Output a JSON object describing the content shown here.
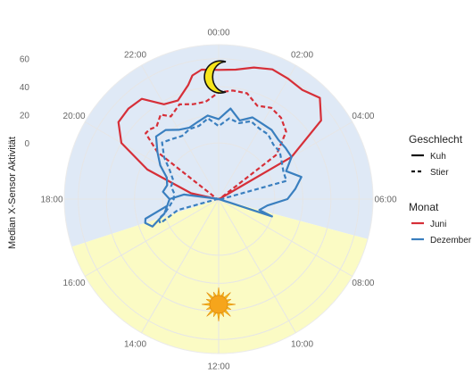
{
  "chart_data": {
    "type": "line",
    "coordinate_system": "polar",
    "ylabel": "Median X-Sensor Aktivität",
    "y_ticks": [
      0,
      20,
      40,
      60
    ],
    "ylim": [
      -40,
      70
    ],
    "hour_ticks": [
      "00:00",
      "02:00",
      "04:00",
      "06:00",
      "08:00",
      "10:00",
      "12:00",
      "14:00",
      "16:00",
      "18:00",
      "20:00",
      "22:00"
    ],
    "night_band": {
      "from_hour": 16.8,
      "to_hour": 7.0,
      "color": "#dfe9f6"
    },
    "day_band": {
      "from_hour": 7.0,
      "to_hour": 16.8,
      "color": "#fbfbc4"
    },
    "grid": true,
    "legend_position": "right",
    "legends": [
      {
        "title": "Geschlecht",
        "entries": [
          {
            "label": "Kuh",
            "linetype": "solid"
          },
          {
            "label": "Stier",
            "linetype": "dashed"
          }
        ]
      },
      {
        "title": "Monat",
        "entries": [
          {
            "label": "Juni",
            "color": "#d62f38"
          },
          {
            "label": "Dezember",
            "color": "#3a7fbf"
          }
        ]
      }
    ],
    "series": [
      {
        "sex": "Kuh",
        "month": "Juni",
        "color": "#d62f38",
        "linetype": "solid",
        "points": [
          [
            4.5,
            -39
          ],
          [
            6.0,
            -39
          ],
          [
            18.0,
            -39
          ],
          [
            18.8,
            -20
          ],
          [
            19.5,
            15
          ],
          [
            20.0,
            40
          ],
          [
            20.5,
            50
          ],
          [
            21.0,
            51
          ],
          [
            21.5,
            50
          ],
          [
            22.0,
            38
          ],
          [
            22.5,
            36
          ],
          [
            23.0,
            44
          ],
          [
            23.2,
            50
          ],
          [
            23.5,
            53
          ],
          [
            0.0,
            52
          ],
          [
            0.5,
            53
          ],
          [
            1.0,
            57
          ],
          [
            1.5,
            60
          ],
          [
            2.0,
            59
          ],
          [
            2.5,
            58
          ],
          [
            3.0,
            62
          ],
          [
            3.5,
            52
          ],
          [
            4.0,
            20
          ],
          [
            4.5,
            -39
          ]
        ]
      },
      {
        "sex": "Stier",
        "month": "Juni",
        "color": "#d62f38",
        "linetype": "dashed",
        "points": [
          [
            4.5,
            -39
          ],
          [
            18.0,
            -39
          ],
          [
            20.5,
            15
          ],
          [
            20.8,
            30
          ],
          [
            21.0,
            30
          ],
          [
            21.3,
            28
          ],
          [
            21.7,
            33
          ],
          [
            22.0,
            28
          ],
          [
            22.5,
            33
          ],
          [
            23.0,
            30
          ],
          [
            23.5,
            30
          ],
          [
            0.0,
            36
          ],
          [
            0.5,
            38
          ],
          [
            1.0,
            38
          ],
          [
            1.5,
            32
          ],
          [
            2.0,
            35
          ],
          [
            2.5,
            33
          ],
          [
            3.0,
            28
          ],
          [
            3.5,
            12
          ],
          [
            4.5,
            -39
          ]
        ]
      },
      {
        "sex": "Kuh",
        "month": "Dezember",
        "color": "#3a7fbf",
        "linetype": "solid",
        "points": [
          [
            7.0,
            -39
          ],
          [
            7.2,
            0
          ],
          [
            7.0,
            -10
          ],
          [
            6.5,
            -5
          ],
          [
            6.0,
            9
          ],
          [
            5.5,
            15
          ],
          [
            5.0,
            21
          ],
          [
            4.5,
            12
          ],
          [
            4.0,
            20
          ],
          [
            3.5,
            20
          ],
          [
            3.0,
            20
          ],
          [
            2.5,
            22
          ],
          [
            2.0,
            22
          ],
          [
            1.5,
            23
          ],
          [
            1.0,
            18
          ],
          [
            0.5,
            25
          ],
          [
            0.0,
            17
          ],
          [
            23.5,
            20
          ],
          [
            23.0,
            17
          ],
          [
            22.5,
            15
          ],
          [
            22.0,
            17
          ],
          [
            21.5,
            22
          ],
          [
            21.0,
            23
          ],
          [
            20.5,
            15
          ],
          [
            20.0,
            8
          ],
          [
            19.5,
            0
          ],
          [
            19.0,
            -2
          ],
          [
            18.5,
            0
          ],
          [
            18.0,
            -5
          ],
          [
            17.5,
            -3
          ],
          [
            17.0,
            0
          ],
          [
            16.5,
            11
          ],
          [
            16.8,
            15
          ],
          [
            17.0,
            14
          ],
          [
            17.5,
            -3
          ],
          [
            18.0,
            -5
          ],
          [
            18.5,
            -15
          ],
          [
            19.0,
            -39
          ],
          [
            7.0,
            -39
          ]
        ]
      },
      {
        "sex": "Stier",
        "month": "Dezember",
        "color": "#3a7fbf",
        "linetype": "dashed",
        "points": [
          [
            7.0,
            -39
          ],
          [
            5.0,
            10
          ],
          [
            4.5,
            10
          ],
          [
            4.0,
            12
          ],
          [
            3.5,
            15
          ],
          [
            3.0,
            15
          ],
          [
            2.5,
            18
          ],
          [
            2.0,
            18
          ],
          [
            1.5,
            20
          ],
          [
            1.0,
            16
          ],
          [
            0.5,
            18
          ],
          [
            0.0,
            12
          ],
          [
            23.5,
            18
          ],
          [
            23.0,
            14
          ],
          [
            22.5,
            14
          ],
          [
            22.0,
            12
          ],
          [
            21.5,
            14
          ],
          [
            21.0,
            17
          ],
          [
            20.5,
            9
          ],
          [
            20.0,
            0
          ],
          [
            19.5,
            -5
          ],
          [
            19.0,
            -5
          ],
          [
            18.5,
            -8
          ],
          [
            18.0,
            -8
          ],
          [
            17.5,
            -5
          ],
          [
            17.0,
            0
          ],
          [
            16.8,
            5
          ],
          [
            16.5,
            5
          ],
          [
            17.0,
            -10
          ],
          [
            18.0,
            -39
          ],
          [
            7.0,
            -39
          ]
        ]
      }
    ],
    "annotations": [
      {
        "type": "moon-icon",
        "hour": 0.0,
        "value": 47
      },
      {
        "type": "sun-icon",
        "hour": 12.0,
        "value": 35
      }
    ]
  }
}
